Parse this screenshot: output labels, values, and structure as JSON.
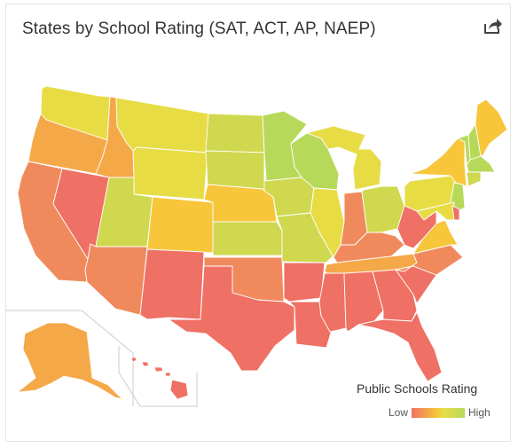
{
  "title": "States by School Rating (SAT, ACT, AP, NAEP)",
  "share_icon": "share-icon",
  "legend": {
    "title": "Public Schools Rating",
    "low_label": "Low",
    "high_label": "High"
  },
  "colors": {
    "low": "#ef7064",
    "low_mid": "#f08a5c",
    "mid_low": "#f5a848",
    "mid": "#f7c63a",
    "mid_high": "#e8dc45",
    "high_mid": "#cfd84e",
    "high": "#b7d95a"
  },
  "states": [
    {
      "name": "WA",
      "level": "mid_high"
    },
    {
      "name": "OR",
      "level": "mid_low"
    },
    {
      "name": "CA",
      "level": "low_mid"
    },
    {
      "name": "NV",
      "level": "low"
    },
    {
      "name": "ID",
      "level": "mid_low"
    },
    {
      "name": "MT",
      "level": "mid_high"
    },
    {
      "name": "WY",
      "level": "mid_high"
    },
    {
      "name": "UT",
      "level": "high_mid"
    },
    {
      "name": "AZ",
      "level": "low_mid"
    },
    {
      "name": "CO",
      "level": "mid"
    },
    {
      "name": "NM",
      "level": "low"
    },
    {
      "name": "ND",
      "level": "high_mid"
    },
    {
      "name": "SD",
      "level": "high_mid"
    },
    {
      "name": "NE",
      "level": "mid"
    },
    {
      "name": "KS",
      "level": "high_mid"
    },
    {
      "name": "OK",
      "level": "low_mid"
    },
    {
      "name": "TX",
      "level": "low"
    },
    {
      "name": "MN",
      "level": "high"
    },
    {
      "name": "IA",
      "level": "high_mid"
    },
    {
      "name": "MO",
      "level": "high_mid"
    },
    {
      "name": "AR",
      "level": "low"
    },
    {
      "name": "LA",
      "level": "low"
    },
    {
      "name": "WI",
      "level": "high"
    },
    {
      "name": "IL",
      "level": "mid_high"
    },
    {
      "name": "MI",
      "level": "mid_high"
    },
    {
      "name": "IN",
      "level": "low_mid"
    },
    {
      "name": "OH",
      "level": "high_mid"
    },
    {
      "name": "KY",
      "level": "low_mid"
    },
    {
      "name": "TN",
      "level": "mid_low"
    },
    {
      "name": "MS",
      "level": "low"
    },
    {
      "name": "AL",
      "level": "low"
    },
    {
      "name": "GA",
      "level": "low"
    },
    {
      "name": "FL",
      "level": "low"
    },
    {
      "name": "SC",
      "level": "low"
    },
    {
      "name": "NC",
      "level": "low_mid"
    },
    {
      "name": "VA",
      "level": "mid"
    },
    {
      "name": "WV",
      "level": "low"
    },
    {
      "name": "PA",
      "level": "mid_high"
    },
    {
      "name": "NY",
      "level": "mid"
    },
    {
      "name": "VT",
      "level": "high"
    },
    {
      "name": "NH",
      "level": "high"
    },
    {
      "name": "ME",
      "level": "mid"
    },
    {
      "name": "MA",
      "level": "high"
    },
    {
      "name": "CT",
      "level": "high_mid"
    },
    {
      "name": "NJ",
      "level": "high"
    },
    {
      "name": "MD",
      "level": "mid_high"
    },
    {
      "name": "DE",
      "level": "low"
    },
    {
      "name": "AK",
      "level": "mid_low"
    },
    {
      "name": "HI",
      "level": "low"
    }
  ]
}
